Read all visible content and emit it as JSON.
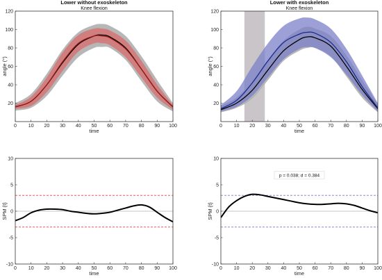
{
  "chart_data": [
    {
      "type": "line",
      "title": "Lower without exoskeleton",
      "subtitle": "Knee flexion",
      "xlabel": "time",
      "ylabel": "angle (°)",
      "xlim": [
        0,
        100
      ],
      "ylim": [
        0,
        120
      ],
      "xticks": [
        "0",
        "10",
        "20",
        "30",
        "40",
        "50",
        "60",
        "70",
        "80",
        "90",
        "100"
      ],
      "yticks": [
        "20",
        "40",
        "60",
        "80",
        "100",
        "120"
      ],
      "grid": false,
      "series": [
        {
          "role": "reference",
          "color": "#000000",
          "band_color": "#b3b3b3",
          "x": [
            0,
            10,
            20,
            30,
            40,
            50,
            55,
            60,
            70,
            80,
            90,
            100
          ],
          "mean": [
            16,
            22,
            40,
            64,
            84,
            93,
            94,
            92,
            80,
            57,
            33,
            16
          ],
          "upper": [
            20,
            30,
            52,
            78,
            97,
            105,
            106,
            104,
            93,
            71,
            45,
            20
          ],
          "lower": [
            12,
            15,
            28,
            50,
            70,
            80,
            81,
            80,
            67,
            44,
            22,
            11
          ]
        },
        {
          "role": "condition",
          "color": "#9b1b1b",
          "band_color": "#d96b6b",
          "x": [
            0,
            10,
            20,
            30,
            40,
            50,
            55,
            60,
            70,
            80,
            90,
            100
          ],
          "mean": [
            16,
            22,
            40,
            65,
            85,
            93,
            93,
            91,
            79,
            57,
            33,
            16
          ],
          "upper": [
            18,
            27,
            48,
            75,
            94,
            101,
            101,
            99,
            88,
            66,
            40,
            18
          ],
          "lower": [
            14,
            17,
            32,
            55,
            76,
            85,
            85,
            83,
            70,
            48,
            26,
            13
          ]
        }
      ]
    },
    {
      "type": "line",
      "title": "Lower with exoskeleton",
      "subtitle": "Knee flexion",
      "xlabel": "time",
      "ylabel": "angle (°)",
      "xlim": [
        0,
        100
      ],
      "ylim": [
        0,
        120
      ],
      "xticks": [
        "0",
        "10",
        "20",
        "30",
        "40",
        "50",
        "60",
        "70",
        "80",
        "90",
        "100"
      ],
      "yticks": [
        "20",
        "40",
        "60",
        "80",
        "100",
        "120"
      ],
      "grid": false,
      "highlight_x": [
        15,
        28
      ],
      "highlight_color": "#bfbbc0",
      "series": [
        {
          "role": "reference",
          "color": "#000000",
          "band_color": "#b3b3b3",
          "x": [
            0,
            10,
            20,
            30,
            40,
            50,
            55,
            60,
            70,
            80,
            90,
            100
          ],
          "mean": [
            13,
            20,
            34,
            56,
            77,
            89,
            92,
            91,
            82,
            60,
            35,
            14
          ],
          "upper": [
            17,
            26,
            44,
            67,
            88,
            100,
            103,
            101,
            93,
            72,
            45,
            19
          ],
          "lower": [
            10,
            15,
            25,
            45,
            66,
            77,
            80,
            80,
            71,
            49,
            26,
            10
          ]
        },
        {
          "role": "condition",
          "color": "#1a2e8c",
          "band_color": "#7b80c8",
          "x": [
            0,
            10,
            20,
            30,
            40,
            50,
            55,
            60,
            70,
            80,
            90,
            100
          ],
          "mean": [
            14,
            23,
            42,
            66,
            86,
            95,
            97,
            96,
            86,
            65,
            38,
            15
          ],
          "upper": [
            18,
            33,
            60,
            85,
            104,
            112,
            113,
            111,
            101,
            79,
            50,
            20
          ],
          "lower": [
            11,
            16,
            28,
            48,
            68,
            79,
            81,
            80,
            70,
            51,
            29,
            11
          ]
        }
      ]
    },
    {
      "type": "line",
      "xlabel": "time",
      "ylabel": "SPM {t}",
      "xlim": [
        0,
        100
      ],
      "ylim": [
        -10,
        10
      ],
      "xticks": [
        "0",
        "10",
        "20",
        "30",
        "40",
        "50",
        "60",
        "70",
        "80",
        "90",
        "100"
      ],
      "yticks": [
        "-10",
        "-5",
        "0",
        "5",
        "10"
      ],
      "threshold": 3.0,
      "threshold_color": "#e8423a",
      "series": [
        {
          "color": "#000000",
          "x": [
            0,
            5,
            10,
            15,
            20,
            25,
            30,
            35,
            40,
            45,
            50,
            55,
            60,
            65,
            70,
            75,
            80,
            85,
            90,
            95,
            100
          ],
          "values": [
            -1.8,
            -1.2,
            -0.3,
            0.2,
            0.4,
            0.4,
            0.3,
            0.0,
            -0.2,
            -0.4,
            -0.5,
            -0.4,
            -0.2,
            0.2,
            0.6,
            1.0,
            1.2,
            0.8,
            -0.2,
            -1.2,
            -2.0
          ]
        }
      ]
    },
    {
      "type": "line",
      "xlabel": "time",
      "ylabel": "SPM {t}",
      "xlim": [
        0,
        100
      ],
      "ylim": [
        -10,
        10
      ],
      "xticks": [
        "0",
        "10",
        "20",
        "30",
        "40",
        "50",
        "60",
        "70",
        "80",
        "90",
        "100"
      ],
      "yticks": [
        "-10",
        "-5",
        "0",
        "5",
        "10"
      ],
      "threshold": 3.0,
      "threshold_color": "#7a76c9",
      "annotation": "p = 0.038; d = 0.384",
      "series": [
        {
          "color": "#000000",
          "x": [
            0,
            5,
            10,
            15,
            20,
            25,
            30,
            35,
            40,
            45,
            50,
            55,
            60,
            65,
            70,
            75,
            80,
            85,
            90,
            95,
            100
          ],
          "values": [
            -1.2,
            0.8,
            2.0,
            2.8,
            3.2,
            3.1,
            2.8,
            2.5,
            2.2,
            1.9,
            1.6,
            1.4,
            1.3,
            1.3,
            1.4,
            1.5,
            1.4,
            1.1,
            0.6,
            0.1,
            -0.3
          ]
        }
      ]
    }
  ]
}
